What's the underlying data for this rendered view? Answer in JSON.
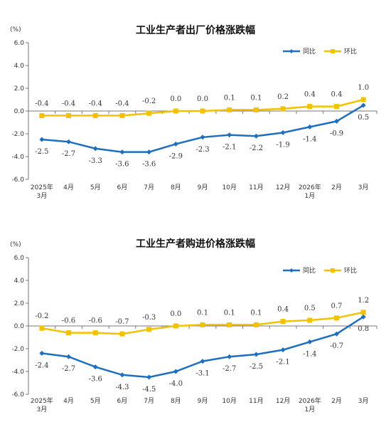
{
  "chart_data": [
    {
      "type": "line",
      "title": "工业生产者出厂价格涨跌幅",
      "unit": "(%)",
      "categories": [
        {
          "line1": "2025年",
          "line2": "3月"
        },
        {
          "line1": "4月",
          "line2": ""
        },
        {
          "line1": "5月",
          "line2": ""
        },
        {
          "line1": "6月",
          "line2": ""
        },
        {
          "line1": "7月",
          "line2": ""
        },
        {
          "line1": "8月",
          "line2": ""
        },
        {
          "line1": "9月",
          "line2": ""
        },
        {
          "line1": "10月",
          "line2": ""
        },
        {
          "line1": "11月",
          "line2": ""
        },
        {
          "line1": "12月",
          "line2": ""
        },
        {
          "line1": "2026年",
          "line2": "1月"
        },
        {
          "line1": "2月",
          "line2": ""
        },
        {
          "line1": "3月",
          "line2": ""
        }
      ],
      "ylim": [
        -6.0,
        6.0
      ],
      "yticks": [
        "6.0",
        "4.0",
        "2.0",
        "0.0",
        "-2.0",
        "-4.0",
        "-6.0"
      ],
      "grid": false,
      "legend": "top-right",
      "series": [
        {
          "name": "同比",
          "color": "#1f6fbf",
          "values": [
            -2.5,
            -2.7,
            -3.3,
            -3.6,
            -3.6,
            -2.9,
            -2.3,
            -2.1,
            -2.2,
            -1.9,
            -1.4,
            -0.9,
            0.5
          ],
          "labels": [
            "-2.5",
            "-2.7",
            "-3.3",
            "-3.6",
            "-3.6",
            "-2.9",
            "-2.3",
            "-2.1",
            "-2.2",
            "-1.9",
            "-1.4",
            "-0.9",
            "0.5"
          ],
          "label_position": "below"
        },
        {
          "name": "环比",
          "color": "#f2c200",
          "values": [
            -0.4,
            -0.4,
            -0.4,
            -0.4,
            -0.2,
            0.0,
            0.0,
            0.1,
            0.1,
            0.2,
            0.4,
            0.4,
            1.0
          ],
          "labels": [
            "-0.4",
            "-0.4",
            "-0.4",
            "-0.4",
            "-0.2",
            "0.0",
            "0.0",
            "0.1",
            "0.1",
            "0.2",
            "0.4",
            "0.4",
            "1.0"
          ],
          "label_position": "above"
        }
      ]
    },
    {
      "type": "line",
      "title": "工业生产者购进价格涨跌幅",
      "unit": "(%)",
      "categories": [
        {
          "line1": "2025年",
          "line2": "3月"
        },
        {
          "line1": "4月",
          "line2": ""
        },
        {
          "line1": "5月",
          "line2": ""
        },
        {
          "line1": "6月",
          "line2": ""
        },
        {
          "line1": "7月",
          "line2": ""
        },
        {
          "line1": "8月",
          "line2": ""
        },
        {
          "line1": "9月",
          "line2": ""
        },
        {
          "line1": "10月",
          "line2": ""
        },
        {
          "line1": "11月",
          "line2": ""
        },
        {
          "line1": "12月",
          "line2": ""
        },
        {
          "line1": "2026年",
          "line2": "1月"
        },
        {
          "line1": "2月",
          "line2": ""
        },
        {
          "line1": "3月",
          "line2": ""
        }
      ],
      "ylim": [
        -6.0,
        6.0
      ],
      "yticks": [
        "6.0",
        "4.0",
        "2.0",
        "0.0",
        "-2.0",
        "-4.0",
        "-6.0"
      ],
      "grid": false,
      "legend": "top-right",
      "series": [
        {
          "name": "同比",
          "color": "#1f6fbf",
          "values": [
            -2.4,
            -2.7,
            -3.6,
            -4.3,
            -4.5,
            -4.0,
            -3.1,
            -2.7,
            -2.5,
            -2.1,
            -1.4,
            -0.7,
            0.8
          ],
          "labels": [
            "-2.4",
            "-2.7",
            "-3.6",
            "-4.3",
            "-4.5",
            "-4.0",
            "-3.1",
            "-2.7",
            "-2.5",
            "-2.1",
            "-1.4",
            "-0.7",
            "0.8"
          ],
          "label_position": "below"
        },
        {
          "name": "环比",
          "color": "#f2c200",
          "values": [
            -0.2,
            -0.6,
            -0.6,
            -0.7,
            -0.3,
            0.0,
            0.1,
            0.1,
            0.1,
            0.4,
            0.5,
            0.7,
            1.2
          ],
          "labels": [
            "-0.2",
            "-0.6",
            "-0.6",
            "-0.7",
            "-0.3",
            "0.0",
            "0.1",
            "0.1",
            "0.1",
            "0.4",
            "0.5",
            "0.7",
            "1.2"
          ],
          "label_position": "above"
        }
      ]
    }
  ]
}
